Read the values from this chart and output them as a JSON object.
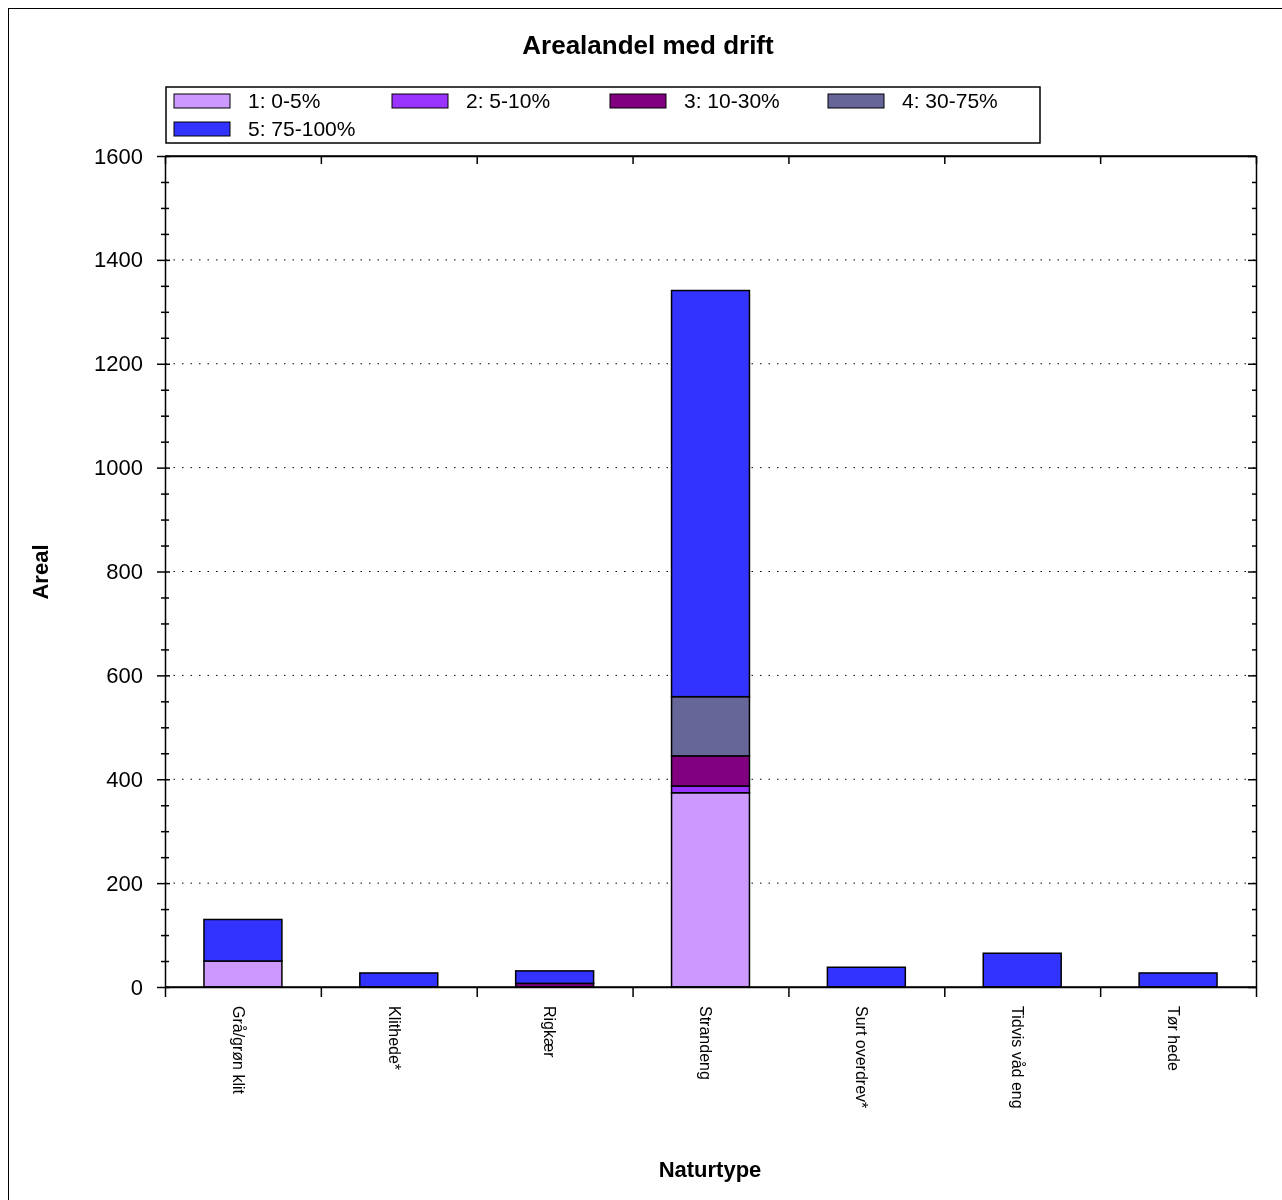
{
  "chart_data": {
    "type": "bar",
    "title": "Arealandel med drift",
    "xlabel": "Naturtype",
    "ylabel": "Areal",
    "categories": [
      "Grå/grøn klit",
      "Klithede*",
      "Rigkær",
      "Strandeng",
      "Surt overdrev*",
      "Tidvis våd eng",
      "Tør hede"
    ],
    "stacked": true,
    "legend": "top",
    "grid": "y",
    "series": [
      {
        "name": "1: 0-5%",
        "color": "#cc99ff",
        "values": [
          50,
          0,
          0,
          374,
          0,
          0,
          0
        ]
      },
      {
        "name": "2: 5-10%",
        "color": "#9933ff",
        "values": [
          0,
          0,
          0,
          13,
          0,
          0,
          0
        ]
      },
      {
        "name": "3: 10-30%",
        "color": "#800080",
        "values": [
          0,
          0,
          7,
          58,
          0,
          0,
          0
        ]
      },
      {
        "name": "4: 30-75%",
        "color": "#666699",
        "values": [
          0,
          0,
          0,
          114,
          0,
          0,
          0
        ]
      },
      {
        "name": "5: 75-100%",
        "color": "#3333ff",
        "values": [
          80,
          27,
          24,
          782,
          38,
          65,
          27
        ]
      }
    ],
    "ylim": [
      0,
      1600
    ],
    "yticks": [
      0,
      {
        "value": 50,
        "label": null
      },
      {
        "value": 100,
        "label": null
      },
      {
        "value": 150,
        "label": null
      },
      200,
      {
        "value": 250,
        "label": null
      },
      {
        "value": 300,
        "label": null
      },
      {
        "value": 350,
        "label": null
      },
      400,
      {
        "value": 450,
        "label": null
      },
      {
        "value": 500,
        "label": null
      },
      {
        "value": 550,
        "label": null
      },
      600,
      {
        "value": 650,
        "label": null
      },
      {
        "value": 700,
        "label": null
      },
      {
        "value": 750,
        "label": null
      },
      800,
      {
        "value": 850,
        "label": null
      },
      {
        "value": 900,
        "label": null
      },
      {
        "value": 950,
        "label": null
      },
      1000,
      {
        "value": 1050,
        "label": null
      },
      {
        "value": 1100,
        "label": null
      },
      {
        "value": 1150,
        "label": null
      },
      1200,
      {
        "value": 1250,
        "label": null
      },
      {
        "value": 1300,
        "label": null
      },
      {
        "value": 1350,
        "label": null
      },
      1400,
      {
        "value": 1450,
        "label": null
      },
      {
        "value": 1500,
        "label": null
      },
      {
        "value": 1550,
        "label": null
      },
      1600
    ]
  }
}
